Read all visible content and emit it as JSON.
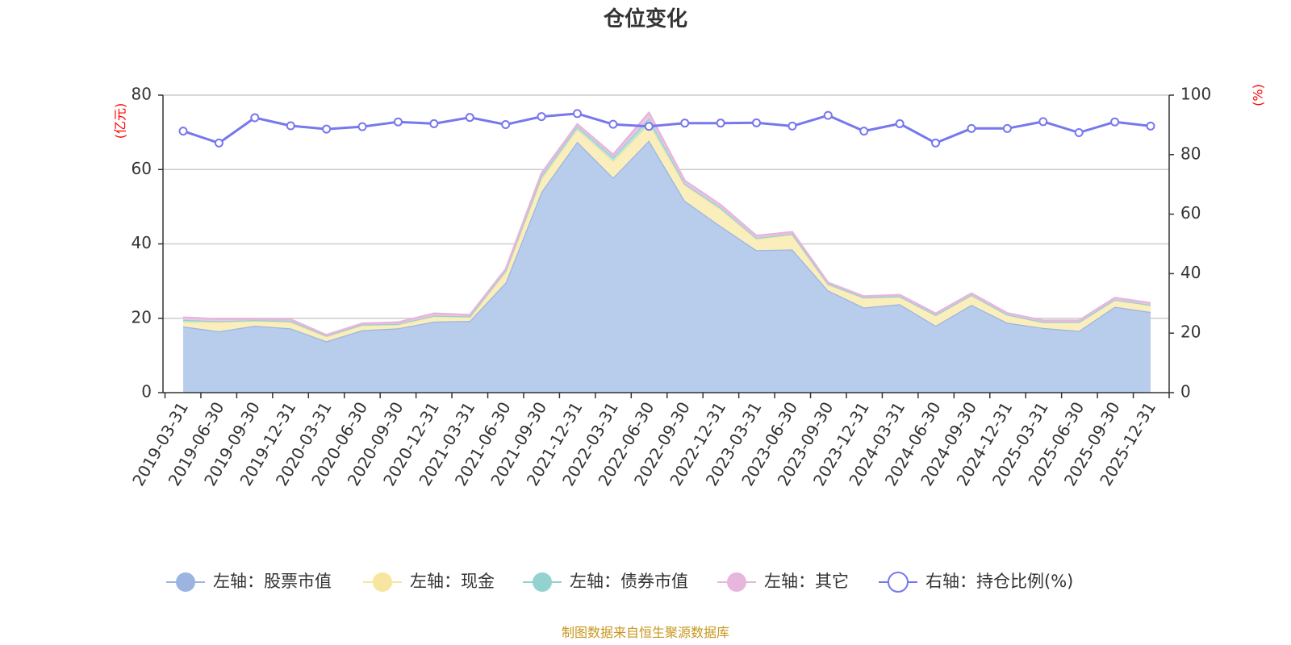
{
  "chart_data": {
    "type": "area",
    "title": "仓位变化",
    "left_unit": "(亿元)",
    "right_unit": "(%)",
    "left_ylim": [
      0,
      80
    ],
    "left_ticks": [
      0,
      20,
      40,
      60,
      80
    ],
    "right_ylim": [
      0,
      100
    ],
    "right_ticks": [
      0,
      20,
      40,
      60,
      80,
      100
    ],
    "grid": true,
    "legend_position": "bottom",
    "x": [
      "2019-03-31",
      "2019-06-30",
      "2019-09-30",
      "2019-12-31",
      "2020-03-31",
      "2020-06-30",
      "2020-09-30",
      "2020-12-31",
      "2021-03-31",
      "2021-06-30",
      "2021-09-30",
      "2021-12-31",
      "2022-03-31",
      "2022-06-30",
      "2022-09-30",
      "2022-12-31",
      "2023-03-31",
      "2023-06-30",
      "2023-09-30",
      "2023-12-31",
      "2024-03-31",
      "2024-06-30",
      "2024-09-30",
      "2024-12-31",
      "2025-03-31",
      "2025-06-30",
      "2025-09-30",
      "2025-12-31"
    ],
    "series": [
      {
        "name": "左轴：股票市值",
        "axis": "left",
        "stacked": true,
        "color": "#9bb5e0",
        "fill": "#b8cdec",
        "values": [
          17.8,
          16.5,
          18.0,
          17.3,
          13.8,
          16.8,
          17.3,
          19.1,
          19.3,
          29.6,
          54.0,
          67.5,
          57.8,
          67.8,
          51.6,
          44.8,
          38.3,
          38.5,
          27.5,
          22.9,
          23.8,
          18.0,
          23.6,
          18.8,
          17.4,
          16.6,
          23.1,
          21.7
        ]
      },
      {
        "name": "左轴：现金",
        "axis": "left",
        "stacked": true,
        "color": "#f7e5a0",
        "fill": "#fbeebd",
        "values": [
          1.2,
          2.5,
          1.3,
          1.6,
          1.3,
          1.3,
          1.0,
          1.4,
          1.0,
          2.8,
          3.5,
          3.3,
          4.5,
          4.5,
          4.2,
          4.5,
          3.0,
          4.0,
          1.6,
          2.6,
          2.0,
          2.8,
          2.5,
          2.1,
          1.5,
          2.3,
          1.8,
          1.8
        ]
      },
      {
        "name": "左轴：债券市值",
        "axis": "left",
        "stacked": true,
        "color": "#93d2d1",
        "fill": "#b3e3e2",
        "values": [
          0.6,
          0.2,
          0.2,
          0.4,
          0.2,
          0.2,
          0.2,
          0.2,
          0.2,
          0.5,
          0.8,
          0.8,
          1.0,
          1.5,
          0.4,
          0.5,
          0.3,
          0.2,
          0.2,
          0.1,
          0.1,
          0.1,
          0.2,
          0.1,
          0.1,
          0.1,
          0.1,
          0.1
        ]
      },
      {
        "name": "左轴：其它",
        "axis": "left",
        "stacked": true,
        "color": "#e6b6dd",
        "fill": "#edc6e6",
        "values": [
          0.6,
          0.6,
          0.3,
          0.4,
          0.2,
          0.3,
          0.4,
          0.6,
          0.4,
          0.3,
          0.7,
          0.6,
          0.7,
          1.5,
          0.8,
          0.7,
          0.6,
          0.5,
          0.3,
          0.3,
          0.4,
          0.4,
          0.4,
          0.4,
          0.4,
          0.4,
          0.5,
          0.5
        ]
      },
      {
        "name": "右轴：持仓比例(%)",
        "axis": "right",
        "stacked": false,
        "color": "#7777ee",
        "values": [
          87.9,
          83.9,
          92.4,
          89.7,
          88.6,
          89.4,
          91.0,
          90.4,
          92.5,
          90.1,
          92.8,
          93.8,
          90.2,
          89.5,
          90.6,
          90.6,
          90.7,
          89.6,
          93.2,
          87.9,
          90.4,
          83.9,
          88.8,
          88.8,
          91.1,
          87.4,
          91.0,
          89.6
        ]
      }
    ],
    "source_text": "制图数据来自恒生聚源数据库"
  }
}
